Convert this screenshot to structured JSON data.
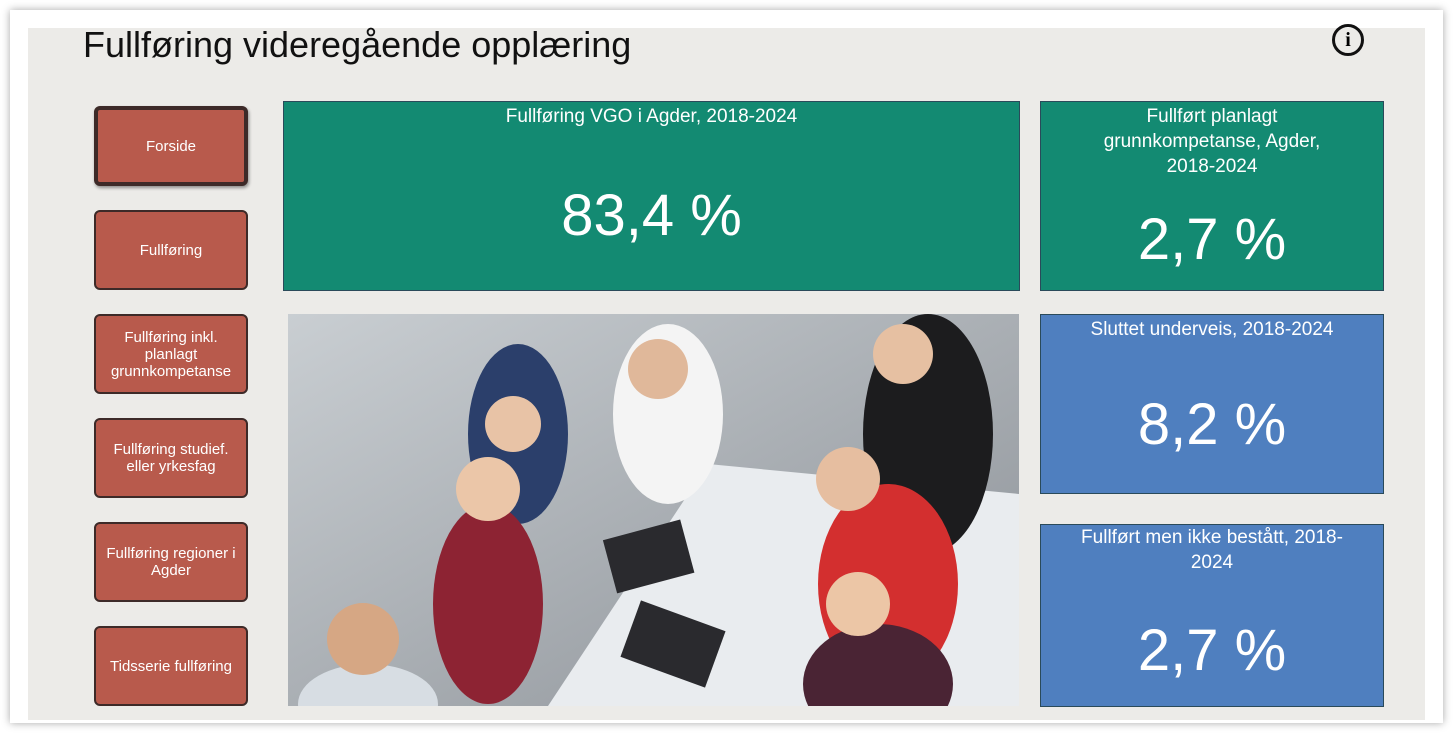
{
  "header": {
    "title": "Fullføring videregående opplæring"
  },
  "nav": [
    "Forside",
    "Fullføring",
    "Fullføring inkl. planlagt grunnkompetanse",
    "Fullføring studief. eller yrkesfag",
    "Fullføring regioner i Agder",
    "Tidsserie fullføring"
  ],
  "cards": [
    {
      "title": "Fullføring VGO i Agder, 2018-2024",
      "value": "83,4 %"
    },
    {
      "title": "Fullført planlagt grunnkompetanse, Agder, 2018-2024",
      "value": "2,7 %"
    },
    {
      "title": "Sluttet underveis, 2018-2024",
      "value": "8,2 %"
    },
    {
      "title": "Fullført men ikke bestått, 2018-2024",
      "value": "2,7 %"
    }
  ]
}
